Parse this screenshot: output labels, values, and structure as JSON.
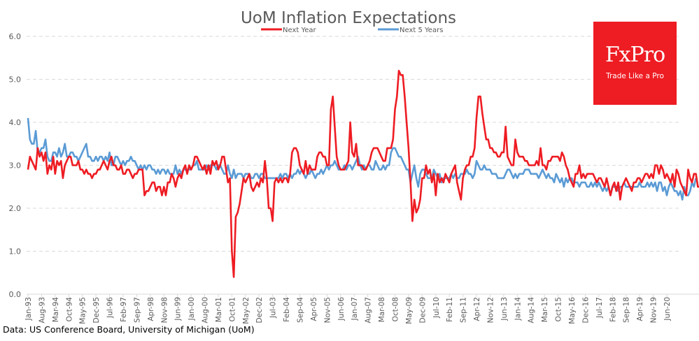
{
  "chart_data": {
    "type": "line",
    "title": "UoM Inflation Expectations",
    "xlabel": "",
    "ylabel": "",
    "ylim": [
      0,
      6
    ],
    "yticks": [
      "0.0",
      "1.0",
      "2.0",
      "3.0",
      "4.0",
      "5.0",
      "6.0"
    ],
    "grid": true,
    "legend_position": "top-center",
    "start_month": "Jan-93",
    "frequency": "monthly",
    "xtick_labels": [
      "Jan-93",
      "Aug-93",
      "Mar-94",
      "Oct-94",
      "May-95",
      "Dec-95",
      "Jul-96",
      "Feb-97",
      "Sep-97",
      "Apr-98",
      "Nov-98",
      "Jun-99",
      "Jan-00",
      "Aug-00",
      "Mar-01",
      "Oct-01",
      "May-02",
      "Dec-02",
      "Jul-03",
      "Feb-04",
      "Sep-04",
      "Apr-05",
      "Nov-05",
      "Jun-06",
      "Jan-07",
      "Aug-07",
      "Mar-08",
      "Oct-08",
      "May-09",
      "Dec-09",
      "Jul-10",
      "Feb-11",
      "Sep-11",
      "Apr-12",
      "Nov-12",
      "Jun-13",
      "Jan-14",
      "Aug-14",
      "Mar-15",
      "Oct-15",
      "May-16",
      "Dec-16",
      "Jul-17",
      "Feb-18",
      "Sep-18",
      "Apr-19",
      "Nov-19",
      "Jun-20"
    ],
    "series": [
      {
        "name": "Next Year",
        "color": "#ee1c23",
        "values": [
          2.9,
          3.2,
          3.1,
          3.0,
          2.9,
          3.4,
          3.2,
          3.3,
          3.1,
          3.3,
          2.8,
          3.0,
          2.9,
          3.2,
          2.8,
          3.1,
          3.0,
          3.1,
          2.7,
          3.0,
          3.1,
          3.2,
          3.2,
          3.0,
          3.0,
          3.0,
          3.1,
          2.9,
          2.9,
          2.8,
          2.9,
          2.8,
          2.8,
          2.7,
          2.8,
          2.8,
          2.9,
          2.9,
          3.0,
          3.1,
          3.0,
          2.9,
          3.1,
          3.2,
          3.0,
          3.0,
          2.9,
          2.9,
          3.0,
          2.8,
          2.8,
          2.9,
          2.9,
          2.8,
          2.7,
          2.8,
          2.8,
          2.9,
          2.9,
          2.9,
          2.3,
          2.4,
          2.4,
          2.5,
          2.6,
          2.6,
          2.4,
          2.5,
          2.5,
          2.3,
          2.5,
          2.3,
          2.6,
          2.6,
          2.8,
          2.7,
          2.5,
          2.7,
          2.8,
          2.7,
          2.9,
          3.0,
          2.8,
          3.0,
          2.9,
          3.0,
          3.2,
          3.2,
          3.1,
          3.0,
          2.9,
          3.0,
          2.8,
          3.0,
          2.8,
          3.1,
          3.0,
          3.1,
          2.9,
          3.0,
          3.2,
          3.2,
          2.9,
          2.6,
          2.7,
          1.0,
          0.4,
          1.8,
          1.9,
          2.1,
          2.4,
          2.7,
          2.6,
          2.7,
          2.8,
          2.5,
          2.4,
          2.5,
          2.6,
          2.5,
          2.7,
          2.6,
          3.1,
          2.7,
          2.0,
          2.0,
          1.7,
          2.6,
          2.7,
          2.6,
          2.7,
          2.6,
          2.7,
          2.7,
          2.6,
          2.8,
          3.3,
          3.4,
          3.4,
          3.3,
          3.0,
          2.9,
          2.8,
          3.1,
          2.8,
          3.0,
          2.9,
          2.9,
          2.9,
          3.2,
          3.3,
          3.3,
          3.2,
          3.2,
          3.0,
          3.0,
          4.3,
          4.6,
          3.9,
          3.2,
          3.0,
          2.9,
          2.9,
          2.9,
          3.0,
          3.1,
          4.0,
          3.3,
          3.2,
          3.5,
          3.0,
          3.0,
          3.0,
          2.9,
          2.9,
          3.0,
          3.1,
          3.3,
          3.4,
          3.4,
          3.4,
          3.3,
          3.2,
          3.1,
          3.1,
          3.4,
          3.4,
          3.4,
          3.6,
          4.3,
          4.6,
          5.2,
          5.1,
          5.1,
          4.6,
          4.0,
          3.4,
          2.6,
          1.7,
          2.2,
          1.9,
          2.0,
          2.2,
          2.7,
          2.7,
          3.0,
          2.8,
          2.9,
          2.6,
          2.8,
          2.3,
          2.8,
          2.6,
          2.7,
          2.6,
          2.8,
          2.7,
          2.6,
          2.8,
          2.9,
          3.0,
          2.6,
          2.4,
          2.2,
          2.7,
          2.9,
          3.0,
          3.0,
          3.2,
          3.2,
          3.4,
          4.1,
          4.6,
          4.6,
          4.2,
          3.9,
          3.6,
          3.6,
          3.4,
          3.4,
          3.3,
          3.3,
          3.2,
          3.2,
          3.3,
          3.3,
          3.9,
          3.2,
          3.1,
          3.0,
          3.0,
          3.6,
          3.3,
          3.2,
          3.2,
          3.2,
          3.1,
          3.1,
          3.0,
          3.0,
          3.0,
          3.0,
          3.1,
          3.0,
          3.4,
          3.0,
          3.0,
          2.9,
          3.1,
          3.1,
          3.2,
          3.2,
          3.2,
          3.2,
          3.1,
          3.3,
          3.2,
          3.0,
          2.9,
          2.7,
          2.6,
          2.5,
          2.8,
          2.8,
          3.0,
          2.7,
          2.8,
          2.7,
          2.8,
          2.8,
          2.8,
          2.8,
          2.7,
          2.6,
          2.7,
          2.7,
          2.6,
          2.5,
          2.7,
          2.5,
          2.3,
          2.5,
          2.6,
          2.4,
          2.6,
          2.2,
          2.5,
          2.6,
          2.7,
          2.6,
          2.5,
          2.4,
          2.6,
          2.6,
          2.7,
          2.7,
          2.6,
          2.7,
          2.8,
          2.8,
          2.7,
          2.8,
          2.7,
          3.0,
          3.0,
          2.8,
          3.0,
          2.9,
          2.7,
          2.8,
          2.7,
          2.6,
          2.8,
          2.5,
          2.9,
          2.8,
          2.6,
          2.5,
          2.4,
          2.3,
          2.9,
          2.7,
          2.6,
          2.8,
          2.8,
          2.5,
          2.5,
          2.4,
          2.5,
          2.5,
          2.3,
          2.2,
          2.1,
          3.2,
          3.0,
          3.1
        ]
      },
      {
        "name": "Next 5 Years",
        "color": "#5b9bd5",
        "values": [
          4.1,
          3.6,
          3.5,
          3.5,
          3.8,
          3.3,
          3.3,
          3.4,
          3.4,
          3.6,
          3.2,
          3.1,
          3.1,
          3.3,
          3.3,
          3.2,
          3.4,
          3.2,
          3.3,
          3.5,
          3.2,
          3.2,
          3.3,
          3.3,
          3.2,
          3.2,
          3.1,
          3.2,
          3.3,
          3.4,
          3.5,
          3.2,
          3.2,
          3.1,
          3.1,
          3.2,
          3.1,
          3.2,
          3.2,
          3.1,
          3.2,
          3.1,
          3.3,
          3.0,
          3.0,
          3.2,
          3.2,
          3.1,
          3.0,
          3.1,
          3.0,
          3.1,
          3.1,
          3.2,
          3.1,
          3.1,
          3.0,
          2.9,
          3.0,
          2.9,
          3.0,
          2.9,
          3.0,
          3.0,
          2.9,
          2.9,
          2.8,
          2.9,
          2.8,
          2.9,
          2.9,
          2.8,
          2.9,
          2.8,
          2.8,
          2.8,
          3.0,
          2.8,
          2.9,
          2.8,
          2.9,
          2.9,
          2.9,
          2.9,
          2.9,
          3.0,
          3.0,
          3.1,
          2.9,
          2.9,
          2.9,
          2.9,
          3.0,
          2.9,
          3.0,
          3.0,
          3.0,
          2.9,
          3.0,
          3.0,
          2.9,
          2.8,
          2.8,
          3.0,
          2.8,
          2.7,
          2.9,
          2.7,
          2.8,
          2.8,
          2.8,
          2.7,
          2.8,
          2.8,
          2.8,
          2.7,
          2.7,
          2.8,
          2.8,
          2.7,
          2.8,
          2.8,
          2.7,
          2.7,
          2.7,
          2.7,
          2.7,
          2.7,
          2.7,
          2.7,
          2.8,
          2.7,
          2.8,
          2.8,
          2.7,
          2.8,
          2.7,
          2.8,
          2.8,
          2.9,
          2.8,
          2.9,
          2.8,
          2.7,
          2.8,
          2.8,
          2.9,
          2.8,
          2.7,
          2.8,
          2.8,
          2.9,
          2.8,
          2.9,
          3.0,
          2.9,
          3.0,
          3.0,
          3.1,
          3.0,
          2.9,
          2.9,
          2.9,
          3.0,
          2.9,
          3.0,
          3.0,
          2.9,
          3.0,
          3.1,
          3.2,
          3.0,
          2.9,
          3.0,
          2.9,
          3.0,
          3.0,
          2.9,
          2.9,
          3.1,
          3.0,
          2.9,
          2.9,
          3.0,
          2.9,
          3.0,
          3.0,
          3.3,
          3.4,
          3.4,
          3.3,
          3.2,
          3.2,
          3.1,
          3.0,
          2.9,
          2.9,
          2.6,
          2.8,
          3.0,
          2.7,
          2.5,
          2.8,
          2.9,
          2.9,
          2.8,
          2.7,
          2.7,
          2.7,
          2.9,
          2.8,
          2.7,
          2.8,
          2.6,
          2.7,
          2.7,
          2.7,
          2.7,
          2.8,
          2.7,
          2.8,
          2.7,
          2.7,
          2.8,
          2.8,
          2.8,
          2.9,
          2.8,
          2.8,
          2.7,
          2.8,
          3.1,
          3.0,
          2.9,
          2.9,
          3.0,
          2.9,
          2.9,
          2.9,
          2.8,
          2.8,
          2.8,
          2.7,
          2.7,
          2.7,
          2.7,
          2.8,
          2.9,
          2.9,
          2.8,
          2.7,
          2.8,
          2.7,
          2.8,
          2.8,
          2.8,
          2.9,
          2.9,
          2.9,
          2.8,
          2.8,
          2.8,
          2.8,
          2.7,
          2.8,
          2.9,
          2.8,
          2.7,
          2.8,
          2.7,
          2.7,
          2.6,
          2.8,
          2.7,
          2.6,
          2.7,
          2.5,
          2.7,
          2.6,
          2.7,
          2.7,
          2.6,
          2.6,
          2.6,
          2.5,
          2.6,
          2.6,
          2.6,
          2.5,
          2.5,
          2.6,
          2.5,
          2.6,
          2.5,
          2.6,
          2.5,
          2.4,
          2.5,
          2.4,
          2.5,
          2.3,
          2.5,
          2.5,
          2.5,
          2.4,
          2.5,
          2.5,
          2.6,
          2.5,
          2.5,
          2.5,
          2.5,
          2.5,
          2.5,
          2.5,
          2.6,
          2.5,
          2.5,
          2.5,
          2.6,
          2.5,
          2.6,
          2.5,
          2.6,
          2.4,
          2.6,
          2.6,
          2.4,
          2.5,
          2.3,
          2.5,
          2.6,
          2.5,
          2.4,
          2.4,
          2.3,
          2.4,
          2.2,
          2.5,
          2.3,
          2.3,
          2.4,
          2.6,
          2.5,
          2.7
        ]
      }
    ]
  },
  "source_note": "Data: US Conference Board, University of Michigan (UoM)",
  "logo": {
    "brand": "FxPro",
    "tagline": "Trade Like a Pro",
    "background": "#ee1c23"
  }
}
